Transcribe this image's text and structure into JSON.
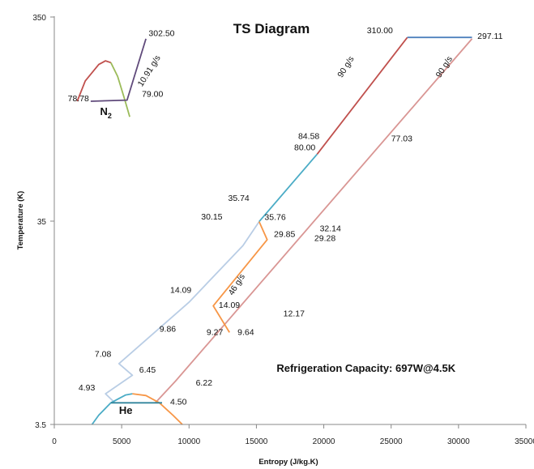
{
  "chart_data": {
    "type": "line",
    "title": "TS Diagram",
    "xlabel": "Entropy (J/kg.K)",
    "ylabel": "Temperature (K)",
    "xlim": [
      0,
      35000
    ],
    "ylim": [
      3.5,
      350
    ],
    "y_scale": "log",
    "x_ticks": [
      0,
      5000,
      10000,
      15000,
      20000,
      25000,
      30000,
      35000
    ],
    "x_tick_labels": [
      "0",
      "5000",
      "10000",
      "15000",
      "20000",
      "25000",
      "30000",
      "35000"
    ],
    "y_ticks": [
      3.5,
      35,
      350
    ],
    "y_tick_labels": [
      "3.5",
      "35",
      "350"
    ],
    "grid": false,
    "series": [
      {
        "color": "#c0504d",
        "x": [
          1700,
          2300,
          3300,
          3800,
          4200
        ],
        "y": [
          150,
          190,
          230,
          240,
          235
        ]
      },
      {
        "color": "#9bbb59",
        "x": [
          4200,
          4700,
          5200,
          5600
        ],
        "y": [
          235,
          200,
          155,
          125
        ]
      },
      {
        "color": "#604a7b",
        "x": [
          2700,
          5400,
          6800
        ],
        "y": [
          150,
          152,
          310
        ]
      },
      {
        "color": "#604a7b",
        "x": [
          6800,
          6800
        ],
        "y": [
          310,
          310
        ]
      },
      {
        "color": "#c0504d",
        "x": [
          19500,
          26200
        ],
        "y": [
          81,
          315
        ]
      },
      {
        "color": "#4f81bd",
        "x": [
          26200,
          31000
        ],
        "y": [
          315,
          315
        ]
      },
      {
        "color": "#d99694",
        "x": [
          31000,
          9000,
          7500
        ],
        "y": [
          310,
          5.8,
          4.5
        ]
      },
      {
        "color": "#4bacc6",
        "x": [
          15200,
          19500
        ],
        "y": [
          37,
          81
        ]
      },
      {
        "color": "#b9cde5",
        "x": [
          15200,
          14000,
          10000,
          4800,
          5800,
          3800,
          4500
        ],
        "y": [
          37,
          28,
          14.5,
          7.1,
          6.2,
          5.0,
          4.5
        ]
      },
      {
        "color": "#f79646",
        "x": [
          15200,
          15800,
          11800,
          13000
        ],
        "y": [
          37,
          30,
          13.9,
          10.2
        ]
      },
      {
        "color": "#4bacc6",
        "x": [
          2800,
          3300,
          4200,
          5300,
          5800
        ],
        "y": [
          3.5,
          3.9,
          4.5,
          4.93,
          5.0
        ]
      },
      {
        "color": "#f79646",
        "x": [
          5800,
          6800,
          7800,
          8800,
          9500
        ],
        "y": [
          5.0,
          4.9,
          4.5,
          3.9,
          3.5
        ]
      },
      {
        "color": "#31859c",
        "x": [
          4200,
          8000
        ],
        "y": [
          4.5,
          4.5
        ]
      }
    ],
    "annotations": [
      {
        "text": "302.50",
        "x": 7000,
        "y": 320
      },
      {
        "text": "10.91 g/s",
        "x": 7200,
        "y": 210
      },
      {
        "text": "78.78",
        "x": 1000,
        "y": 150
      },
      {
        "text": "79.00",
        "x": 6500,
        "y": 158
      },
      {
        "text": "310.00",
        "x": 23200,
        "y": 330
      },
      {
        "text": "297.11",
        "x": 31400,
        "y": 310
      },
      {
        "text": "90 g/s",
        "x": 21800,
        "y": 220
      },
      {
        "text": "90 g/s",
        "x": 29100,
        "y": 220
      },
      {
        "text": "84.58",
        "x": 18100,
        "y": 97
      },
      {
        "text": "80.00",
        "x": 17800,
        "y": 85
      },
      {
        "text": "77.03",
        "x": 25000,
        "y": 94
      },
      {
        "text": "35.74",
        "x": 12900,
        "y": 47
      },
      {
        "text": "30.15",
        "x": 10900,
        "y": 38
      },
      {
        "text": "35.76",
        "x": 15600,
        "y": 37.8
      },
      {
        "text": "29.85",
        "x": 16300,
        "y": 31
      },
      {
        "text": "32.14",
        "x": 19700,
        "y": 33
      },
      {
        "text": "29.28",
        "x": 19300,
        "y": 29.5
      },
      {
        "text": "46 g/s",
        "x": 13700,
        "y": 17.5
      },
      {
        "text": "14.09",
        "x": 8600,
        "y": 16.2
      },
      {
        "text": "14.09",
        "x": 12200,
        "y": 13.6
      },
      {
        "text": "12.17",
        "x": 17000,
        "y": 12.3
      },
      {
        "text": "9.86",
        "x": 7800,
        "y": 10.3
      },
      {
        "text": "9.27",
        "x": 11300,
        "y": 9.9
      },
      {
        "text": "9.64",
        "x": 13600,
        "y": 9.9
      },
      {
        "text": "7.08",
        "x": 3000,
        "y": 7.7
      },
      {
        "text": "6.45",
        "x": 6300,
        "y": 6.4
      },
      {
        "text": "6.22",
        "x": 10500,
        "y": 5.5
      },
      {
        "text": "4.93",
        "x": 1800,
        "y": 5.2
      },
      {
        "text": "4.50",
        "x": 8600,
        "y": 4.4
      }
    ],
    "labels": [
      {
        "text": "N",
        "sub": "2",
        "x": 3400,
        "y": 128
      },
      {
        "text": "He",
        "x": 4800,
        "y": 3.95
      },
      {
        "text": "Refrigeration Capacity: 697W@4.5K",
        "x": 16500,
        "y": 6.45
      }
    ]
  }
}
